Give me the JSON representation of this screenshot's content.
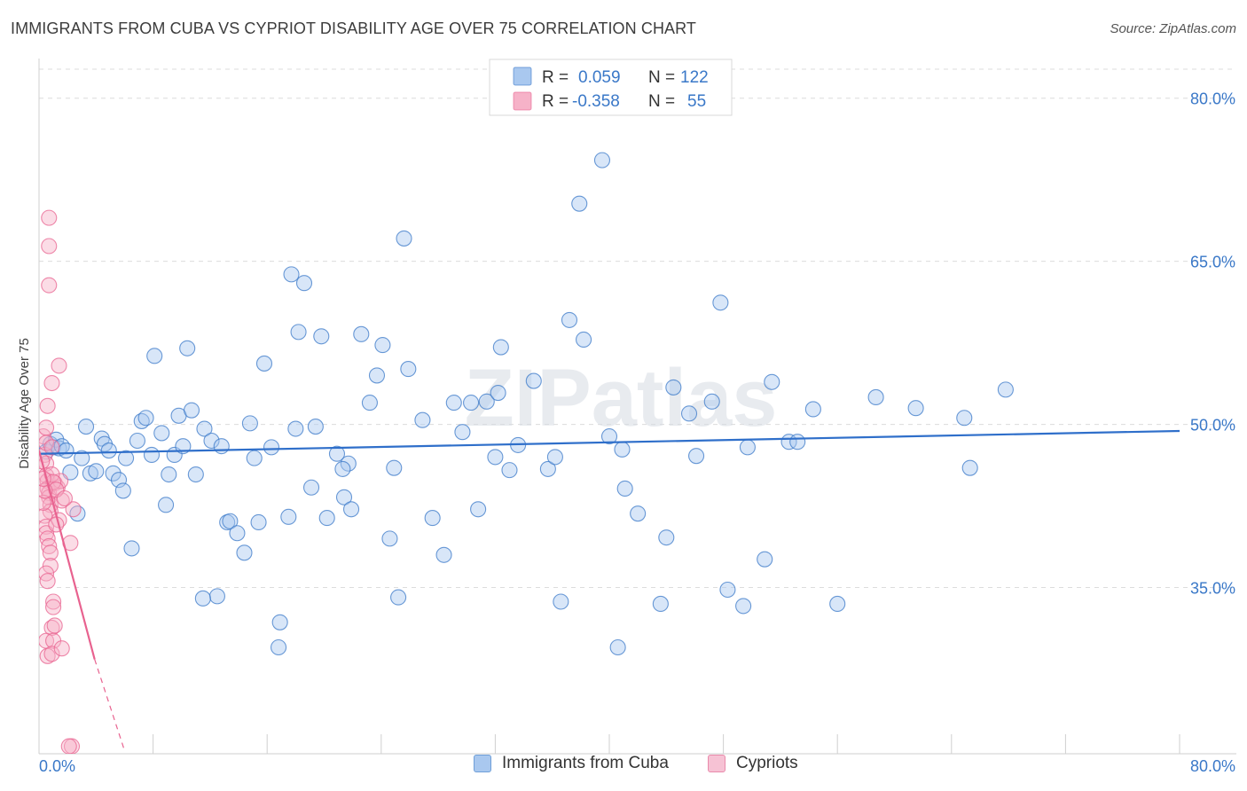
{
  "header": {
    "title": "IMMIGRANTS FROM CUBA VS CYPRIOT DISABILITY AGE OVER 75 CORRELATION CHART",
    "source": "Source: ZipAtlas.com"
  },
  "watermark": "ZIPatlas",
  "legend_top": {
    "rows": [
      {
        "r_label": "R =",
        "r_value": "0.059",
        "n_label": "N =",
        "n_value": "122",
        "color": "#a9c8ef"
      },
      {
        "r_label": "R =",
        "r_value": "-0.358",
        "n_label": "N =",
        "n_value": "55",
        "color": "#f6b2c8"
      }
    ]
  },
  "legend_bottom": {
    "items": [
      {
        "label": "Immigrants from Cuba",
        "color": "#a9c8ef",
        "border": "#6f9fd8"
      },
      {
        "label": "Cypriots",
        "color": "#f6c2d4",
        "border": "#e98aab"
      }
    ]
  },
  "chart_data": {
    "type": "scatter",
    "title": "IMMIGRANTS FROM CUBA VS CYPRIOT DISABILITY AGE OVER 75 CORRELATION CHART",
    "ylabel": "Disability Age Over 75",
    "xlabel": "",
    "xlim": [
      0,
      80
    ],
    "ylim": [
      20,
      82
    ],
    "x_tick_labels": [
      "0.0%",
      "80.0%"
    ],
    "y_tick_values": [
      35,
      50,
      65,
      80
    ],
    "y_tick_labels": [
      "35.0%",
      "50.0%",
      "65.0%",
      "80.0%"
    ],
    "grid": true,
    "legend_position": "top-center",
    "colors": {
      "cuba": "#3a78c8",
      "cuba_fill": "#a9c8ef",
      "cypriot": "#e8628f",
      "cypriot_fill": "#f6b2c8"
    },
    "series": [
      {
        "name": "Immigrants from Cuba",
        "trend": {
          "x": [
            0,
            80
          ],
          "y": [
            47.3,
            49.4
          ]
        },
        "points": [
          [
            0.5,
            47.5
          ],
          [
            0.8,
            48.2
          ],
          [
            1.0,
            47.9
          ],
          [
            1.2,
            48.6
          ],
          [
            1.4,
            47.8
          ],
          [
            1.6,
            48.0
          ],
          [
            1.9,
            47.6
          ],
          [
            2.2,
            45.6
          ],
          [
            2.7,
            41.8
          ],
          [
            3.0,
            46.9
          ],
          [
            3.3,
            49.8
          ],
          [
            3.6,
            45.5
          ],
          [
            4.0,
            45.7
          ],
          [
            4.4,
            48.7
          ],
          [
            4.6,
            48.2
          ],
          [
            4.9,
            47.6
          ],
          [
            5.2,
            45.5
          ],
          [
            5.6,
            44.9
          ],
          [
            5.9,
            43.9
          ],
          [
            6.1,
            46.9
          ],
          [
            6.5,
            38.6
          ],
          [
            6.9,
            48.5
          ],
          [
            7.2,
            50.3
          ],
          [
            7.5,
            50.6
          ],
          [
            7.9,
            47.2
          ],
          [
            8.1,
            56.3
          ],
          [
            8.6,
            49.2
          ],
          [
            8.9,
            42.6
          ],
          [
            9.1,
            45.4
          ],
          [
            9.5,
            47.2
          ],
          [
            9.8,
            50.8
          ],
          [
            10.1,
            48.0
          ],
          [
            10.4,
            57.0
          ],
          [
            10.7,
            51.3
          ],
          [
            11.0,
            45.4
          ],
          [
            11.6,
            49.6
          ],
          [
            12.1,
            48.5
          ],
          [
            12.8,
            48.0
          ],
          [
            13.2,
            41.0
          ],
          [
            13.4,
            41.1
          ],
          [
            13.9,
            40.0
          ],
          [
            14.4,
            38.2
          ],
          [
            14.8,
            50.1
          ],
          [
            15.1,
            46.9
          ],
          [
            15.4,
            41.0
          ],
          [
            15.8,
            55.6
          ],
          [
            16.3,
            47.9
          ],
          [
            16.9,
            31.8
          ],
          [
            16.8,
            29.5
          ],
          [
            17.5,
            41.5
          ],
          [
            17.7,
            63.8
          ],
          [
            18.2,
            58.5
          ],
          [
            18.6,
            63.0
          ],
          [
            19.1,
            44.2
          ],
          [
            19.4,
            49.8
          ],
          [
            19.8,
            58.1
          ],
          [
            20.2,
            41.4
          ],
          [
            20.9,
            47.3
          ],
          [
            21.4,
            43.3
          ],
          [
            21.7,
            46.4
          ],
          [
            21.9,
            42.2
          ],
          [
            22.6,
            58.3
          ],
          [
            23.2,
            52.0
          ],
          [
            23.7,
            54.5
          ],
          [
            24.1,
            57.3
          ],
          [
            24.6,
            39.5
          ],
          [
            24.9,
            46.0
          ],
          [
            25.2,
            34.1
          ],
          [
            25.6,
            67.1
          ],
          [
            25.9,
            55.1
          ],
          [
            26.9,
            50.4
          ],
          [
            27.6,
            41.4
          ],
          [
            28.4,
            38.0
          ],
          [
            29.1,
            52.0
          ],
          [
            29.7,
            49.3
          ],
          [
            30.3,
            52.0
          ],
          [
            30.8,
            42.2
          ],
          [
            31.4,
            52.1
          ],
          [
            32.0,
            47.0
          ],
          [
            32.2,
            52.9
          ],
          [
            32.4,
            57.1
          ],
          [
            33.0,
            45.8
          ],
          [
            33.6,
            48.1
          ],
          [
            34.7,
            54.0
          ],
          [
            35.7,
            45.9
          ],
          [
            36.2,
            47.0
          ],
          [
            36.6,
            33.7
          ],
          [
            37.2,
            59.6
          ],
          [
            37.9,
            70.3
          ],
          [
            38.2,
            57.8
          ],
          [
            39.5,
            74.3
          ],
          [
            40.0,
            48.9
          ],
          [
            40.6,
            29.5
          ],
          [
            40.9,
            47.7
          ],
          [
            41.1,
            44.1
          ],
          [
            42.0,
            41.8
          ],
          [
            43.6,
            33.5
          ],
          [
            44.0,
            39.6
          ],
          [
            44.5,
            53.4
          ],
          [
            45.6,
            51.0
          ],
          [
            46.1,
            47.1
          ],
          [
            47.2,
            52.1
          ],
          [
            47.8,
            61.2
          ],
          [
            48.3,
            34.8
          ],
          [
            49.4,
            33.3
          ],
          [
            49.7,
            47.9
          ],
          [
            50.9,
            37.6
          ],
          [
            51.4,
            53.9
          ],
          [
            52.6,
            48.4
          ],
          [
            53.2,
            48.4
          ],
          [
            54.3,
            51.4
          ],
          [
            56.0,
            33.5
          ],
          [
            58.7,
            52.5
          ],
          [
            61.5,
            51.5
          ],
          [
            64.9,
            50.6
          ],
          [
            65.3,
            46.0
          ],
          [
            67.8,
            53.2
          ],
          [
            18.0,
            49.6
          ],
          [
            21.3,
            45.9
          ],
          [
            12.5,
            34.2
          ],
          [
            11.5,
            34.0
          ]
        ]
      },
      {
        "name": "Cypriots",
        "trend": {
          "x": [
            0,
            3.9
          ],
          "y": [
            47.6,
            28.4
          ]
        },
        "trend_dashed": {
          "x": [
            3.9,
            6.0
          ],
          "y": [
            28.4,
            20.0
          ]
        },
        "points": [
          [
            0.3,
            48.9
          ],
          [
            0.4,
            47.2
          ],
          [
            0.5,
            46.4
          ],
          [
            0.5,
            45.3
          ],
          [
            0.6,
            44.8
          ],
          [
            0.6,
            44.1
          ],
          [
            0.7,
            43.7
          ],
          [
            0.7,
            43.3
          ],
          [
            0.8,
            42.6
          ],
          [
            0.8,
            42.0
          ],
          [
            0.4,
            41.6
          ],
          [
            0.5,
            40.6
          ],
          [
            0.5,
            40.0
          ],
          [
            0.6,
            39.5
          ],
          [
            0.7,
            38.8
          ],
          [
            0.8,
            38.2
          ],
          [
            0.8,
            37.0
          ],
          [
            0.5,
            36.3
          ],
          [
            0.6,
            35.6
          ],
          [
            1.0,
            33.7
          ],
          [
            1.0,
            33.2
          ],
          [
            0.9,
            31.3
          ],
          [
            1.1,
            31.5
          ],
          [
            0.5,
            30.1
          ],
          [
            1.0,
            30.1
          ],
          [
            0.6,
            28.7
          ],
          [
            0.9,
            28.9
          ],
          [
            1.6,
            29.4
          ],
          [
            1.6,
            43.0
          ],
          [
            1.4,
            41.2
          ],
          [
            2.2,
            39.1
          ],
          [
            2.4,
            42.2
          ],
          [
            1.1,
            44.6
          ],
          [
            1.3,
            44.2
          ],
          [
            1.5,
            44.8
          ],
          [
            0.9,
            45.4
          ],
          [
            0.7,
            69.0
          ],
          [
            0.7,
            66.4
          ],
          [
            0.7,
            62.8
          ],
          [
            1.4,
            55.4
          ],
          [
            0.9,
            53.8
          ],
          [
            0.6,
            51.7
          ],
          [
            0.5,
            49.7
          ],
          [
            0.5,
            48.3
          ],
          [
            1.0,
            44.7
          ],
          [
            1.2,
            44.0
          ],
          [
            0.3,
            42.8
          ],
          [
            0.4,
            43.9
          ],
          [
            0.9,
            47.9
          ],
          [
            1.2,
            40.8
          ],
          [
            2.3,
            20.4
          ],
          [
            2.1,
            20.4
          ],
          [
            1.8,
            43.2
          ],
          [
            0.3,
            45.0
          ],
          [
            0.2,
            46.6
          ]
        ]
      }
    ]
  }
}
